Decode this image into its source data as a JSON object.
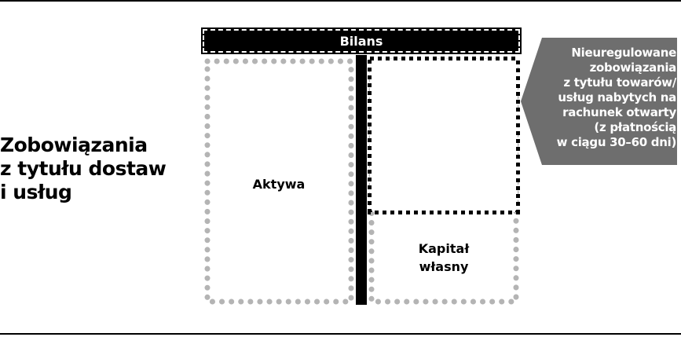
{
  "left_title": {
    "line1": "Zobowiązania",
    "line2": "z tytułu dostaw",
    "line3": "i usług"
  },
  "balance": {
    "title": "Bilans",
    "assets_label": "Aktywa",
    "equity_label_line1": "Kapitał",
    "equity_label_line2": "własny"
  },
  "callout": {
    "lines": [
      "Nieuregulowane",
      "zobowiązania",
      "z tytułu towarów/",
      "usług nabytych na",
      "rachunek otwarty",
      "(z płatnością",
      "w ciągu 30–60 dni)"
    ],
    "fill_color": "#6e6e6e"
  },
  "colors": {
    "dot_gray": "#b4b4b4",
    "dark": "#000000"
  }
}
